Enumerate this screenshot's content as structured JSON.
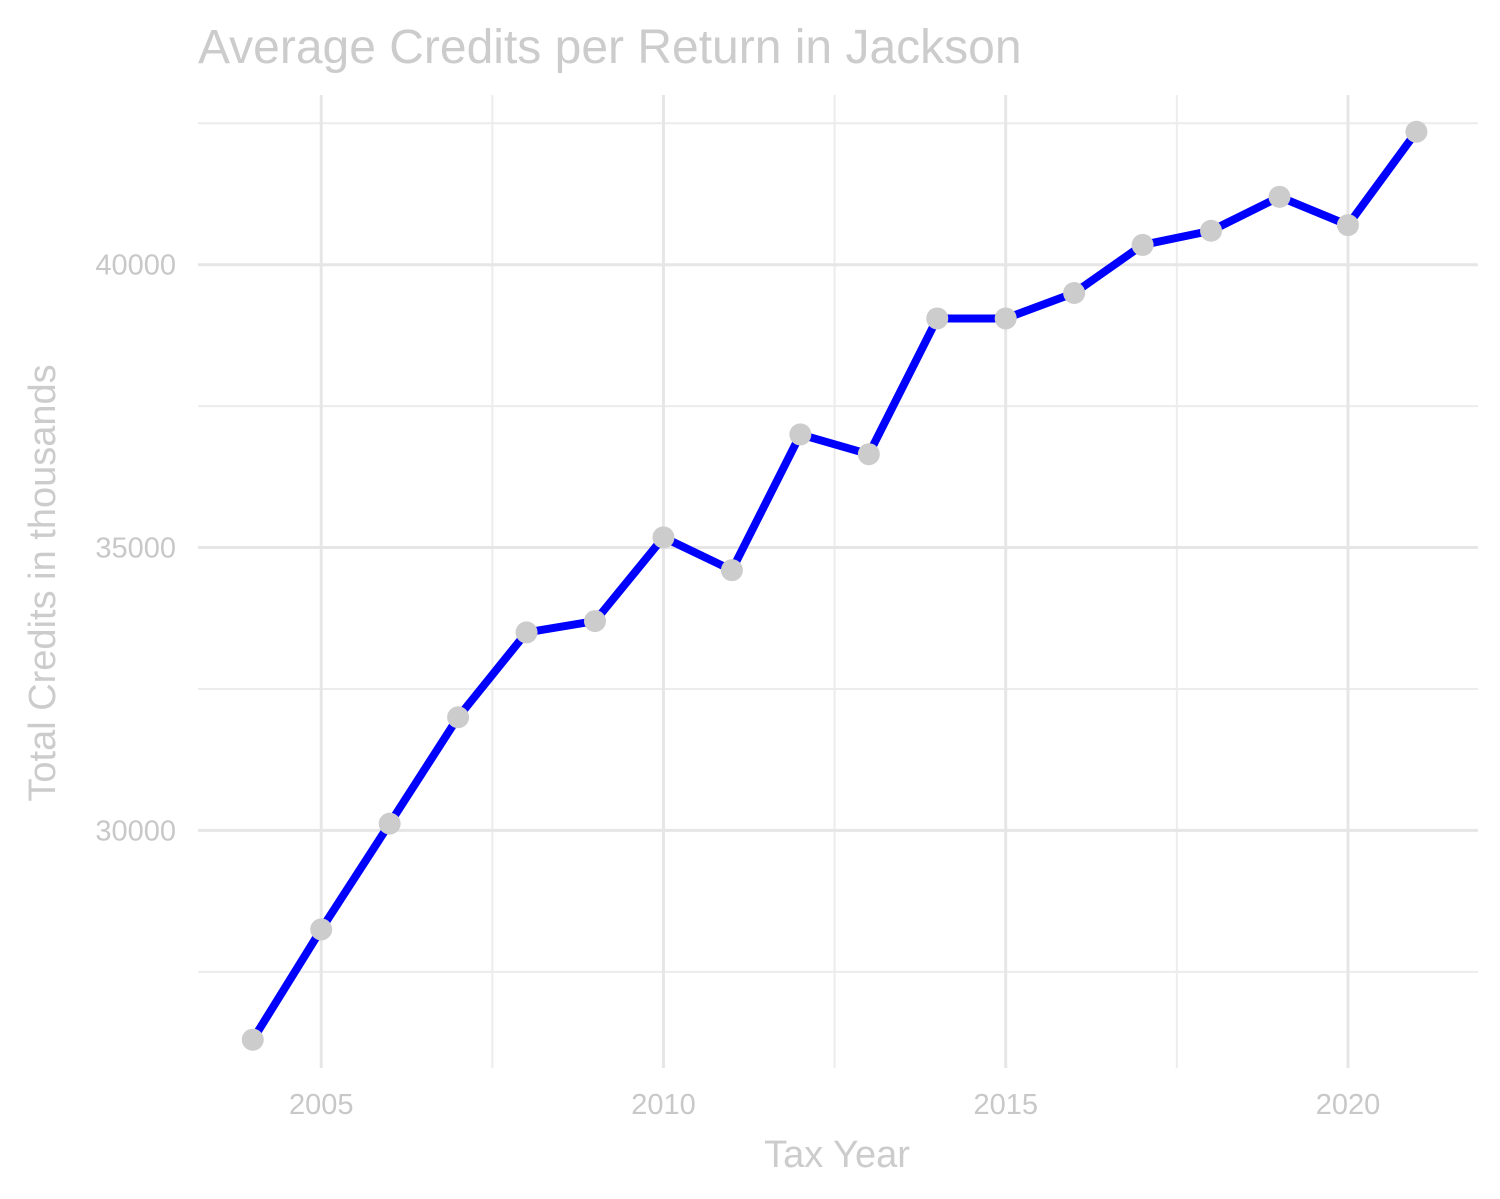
{
  "chart_data": {
    "type": "line",
    "title": "Average Credits per Return in Jackson",
    "xlabel": "Tax Year",
    "ylabel": "Total Credits in thousands",
    "x": [
      2004,
      2005,
      2006,
      2007,
      2008,
      2009,
      2010,
      2011,
      2012,
      2013,
      2014,
      2015,
      2016,
      2017,
      2018,
      2019,
      2020,
      2021
    ],
    "series": [
      {
        "values": [
          26300,
          28250,
          30120,
          32000,
          33500,
          33700,
          35180,
          34600,
          37000,
          36650,
          39050,
          39050,
          39500,
          40350,
          40600,
          41200,
          40700,
          42350
        ]
      }
    ],
    "xlim": [
      2003.2,
      2021.9
    ],
    "ylim": [
      25800,
      43000
    ],
    "x_ticks": [
      2005,
      2010,
      2015,
      2020
    ],
    "x_tick_labels": [
      "2005",
      "2010",
      "2015",
      "2020"
    ],
    "y_ticks": [
      30000,
      35000,
      40000
    ],
    "y_tick_labels": [
      "30000",
      "35000",
      "40000"
    ],
    "grid": true,
    "legend": "none",
    "colors": {
      "line": "#0000ff",
      "points": "#cccccc",
      "grid": "#e6e6e6",
      "text": "#cccccc"
    }
  }
}
